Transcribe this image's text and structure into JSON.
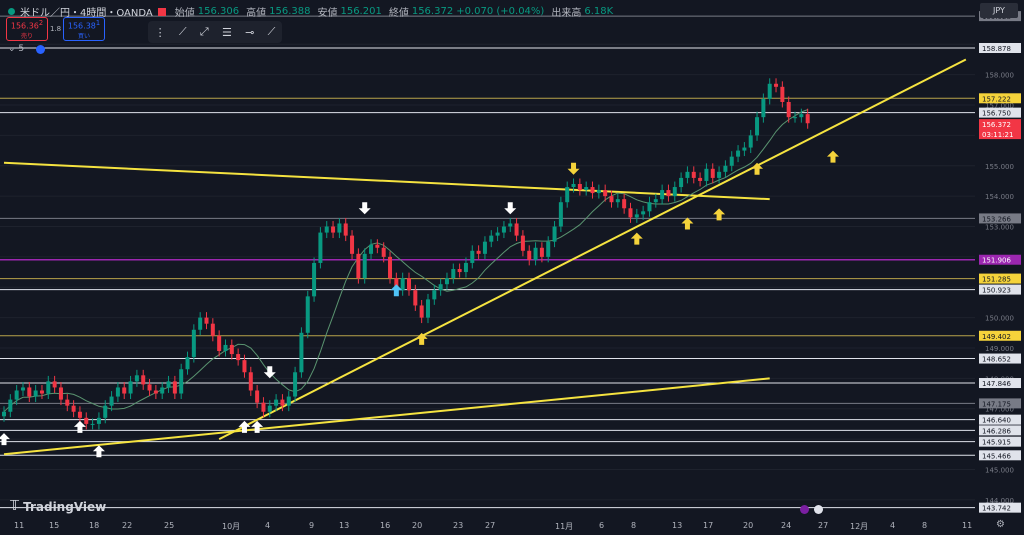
{
  "header": {
    "symbol": "米ドル／円・4時間・OANDA",
    "open_label": "始値",
    "open": "156.306",
    "high_label": "高値",
    "high": "156.388",
    "low_label": "安値",
    "low": "156.201",
    "close_label": "終値",
    "close": "156.372",
    "change": "+0.070 (+0.04%)",
    "volume_label": "出来高",
    "volume": "6.18K"
  },
  "trade": {
    "sell_price": "156.36",
    "sell_sup": "2",
    "sell_label": "売り",
    "spread": "1.8",
    "buy_price": "156.38",
    "buy_sup": "1",
    "buy_label": "買い"
  },
  "indicator": {
    "label": "5"
  },
  "currency": "JPY",
  "logo": "TradingView",
  "settings_icon": "gear-icon",
  "colors": {
    "bg": "#131722",
    "up": "#089981",
    "down": "#f23645",
    "trend": "#f5e340",
    "ma": "#5a9470",
    "purple": "#9c27b0",
    "white_line": "#e0e3eb",
    "gold_line": "#b8a34a"
  },
  "chart_data": {
    "type": "candlestick",
    "y_range": [
      143.5,
      159.8
    ],
    "price_ticks": [
      "158.000",
      "157.000",
      "156.000",
      "155.000",
      "154.000",
      "153.000",
      "152.000",
      "151.000",
      "150.000",
      "149.000",
      "148.000",
      "147.000",
      "145.000",
      "144.000"
    ],
    "x_labels": [
      "11",
      "15",
      "18",
      "22",
      "25",
      "10月",
      "4",
      "9",
      "13",
      "16",
      "20",
      "23",
      "27",
      "11月",
      "6",
      "8",
      "13",
      "17",
      "20",
      "24",
      "27",
      "12月",
      "4",
      "8",
      "11"
    ],
    "hlines": [
      {
        "price": 159.928,
        "label": "159.928",
        "kind": "gray"
      },
      {
        "price": 158.878,
        "label": "158.878",
        "kind": "white"
      },
      {
        "price": 157.222,
        "label": "157.222",
        "kind": "gold"
      },
      {
        "price": 156.75,
        "label": "156.750",
        "kind": "white"
      },
      {
        "price": 153.266,
        "label": "153.266",
        "kind": "gray"
      },
      {
        "price": 151.906,
        "label": "151.906",
        "kind": "purple"
      },
      {
        "price": 151.285,
        "label": "151.285",
        "kind": "gold"
      },
      {
        "price": 150.923,
        "label": "150.923",
        "kind": "white"
      },
      {
        "price": 149.402,
        "label": "149.402",
        "kind": "gold"
      },
      {
        "price": 148.652,
        "label": "148.652",
        "kind": "white"
      },
      {
        "price": 147.846,
        "label": "147.846",
        "kind": "white"
      },
      {
        "price": 147.175,
        "label": "147.175",
        "kind": "gray"
      },
      {
        "price": 146.64,
        "label": "146.640",
        "kind": "white"
      },
      {
        "price": 146.286,
        "label": "146.286",
        "kind": "white"
      },
      {
        "price": 145.915,
        "label": "145.915",
        "kind": "white"
      },
      {
        "price": 145.466,
        "label": "145.466",
        "kind": "white"
      },
      {
        "price": 143.742,
        "label": "143.742",
        "kind": "white"
      }
    ],
    "current_price": {
      "label": "156.372",
      "countdown": "03:11:21"
    },
    "close_series": [
      146.9,
      147.3,
      147.6,
      147.7,
      147.4,
      147.6,
      147.5,
      147.9,
      147.7,
      147.3,
      147.1,
      146.9,
      146.7,
      146.5,
      146.5,
      146.7,
      147.1,
      147.4,
      147.7,
      147.5,
      147.9,
      148.1,
      147.8,
      147.6,
      147.5,
      147.7,
      147.9,
      147.5,
      148.3,
      148.7,
      149.6,
      150.0,
      149.8,
      149.4,
      148.9,
      149.1,
      148.8,
      148.6,
      148.2,
      147.6,
      147.2,
      146.9,
      147.1,
      147.3,
      147.1,
      147.4,
      148.2,
      149.5,
      150.7,
      151.8,
      152.8,
      153.0,
      152.8,
      153.1,
      152.7,
      152.1,
      151.3,
      152.1,
      152.4,
      152.3,
      152.0,
      151.3,
      150.9,
      151.3,
      150.9,
      150.4,
      150.0,
      150.6,
      150.9,
      151.1,
      151.3,
      151.6,
      151.5,
      151.8,
      152.2,
      152.1,
      152.5,
      152.7,
      152.8,
      153.0,
      153.1,
      152.7,
      152.2,
      151.9,
      152.3,
      152.0,
      152.5,
      153.0,
      153.8,
      154.3,
      154.4,
      154.2,
      154.3,
      154.1,
      154.2,
      154.0,
      153.8,
      153.9,
      153.6,
      153.3,
      153.4,
      153.5,
      153.8,
      153.9,
      154.2,
      154.0,
      154.3,
      154.6,
      154.8,
      154.6,
      154.5,
      154.9,
      154.6,
      154.8,
      155.0,
      155.3,
      155.5,
      155.6,
      156.0,
      156.6,
      157.2,
      157.7,
      157.6,
      157.1,
      156.6,
      156.6,
      156.7,
      156.4
    ],
    "trendlines": [
      {
        "from": [
          0,
          155.1
        ],
        "to": [
          121,
          153.9
        ]
      },
      {
        "from": [
          0,
          145.5
        ],
        "to": [
          121,
          148.0
        ]
      },
      {
        "from": [
          34,
          146.0
        ],
        "to": [
          152,
          158.5
        ]
      }
    ],
    "arrows": {
      "down_white": [
        [
          57,
          153.6
        ],
        [
          80,
          153.6
        ]
      ],
      "up_white": [
        [
          0,
          146.0
        ],
        [
          12,
          146.4
        ],
        [
          15,
          145.6
        ],
        [
          38,
          146.4
        ],
        [
          40,
          146.4
        ]
      ],
      "down_white_small": [
        [
          42,
          148.2
        ]
      ],
      "up_blue": [
        [
          62,
          150.9
        ]
      ],
      "up_yellow": [
        [
          66,
          149.3
        ],
        [
          100,
          152.6
        ],
        [
          108,
          153.1
        ],
        [
          113,
          153.4
        ],
        [
          119,
          154.9
        ],
        [
          131,
          155.3
        ]
      ],
      "down_yellow": [
        [
          90,
          154.9
        ]
      ]
    }
  }
}
